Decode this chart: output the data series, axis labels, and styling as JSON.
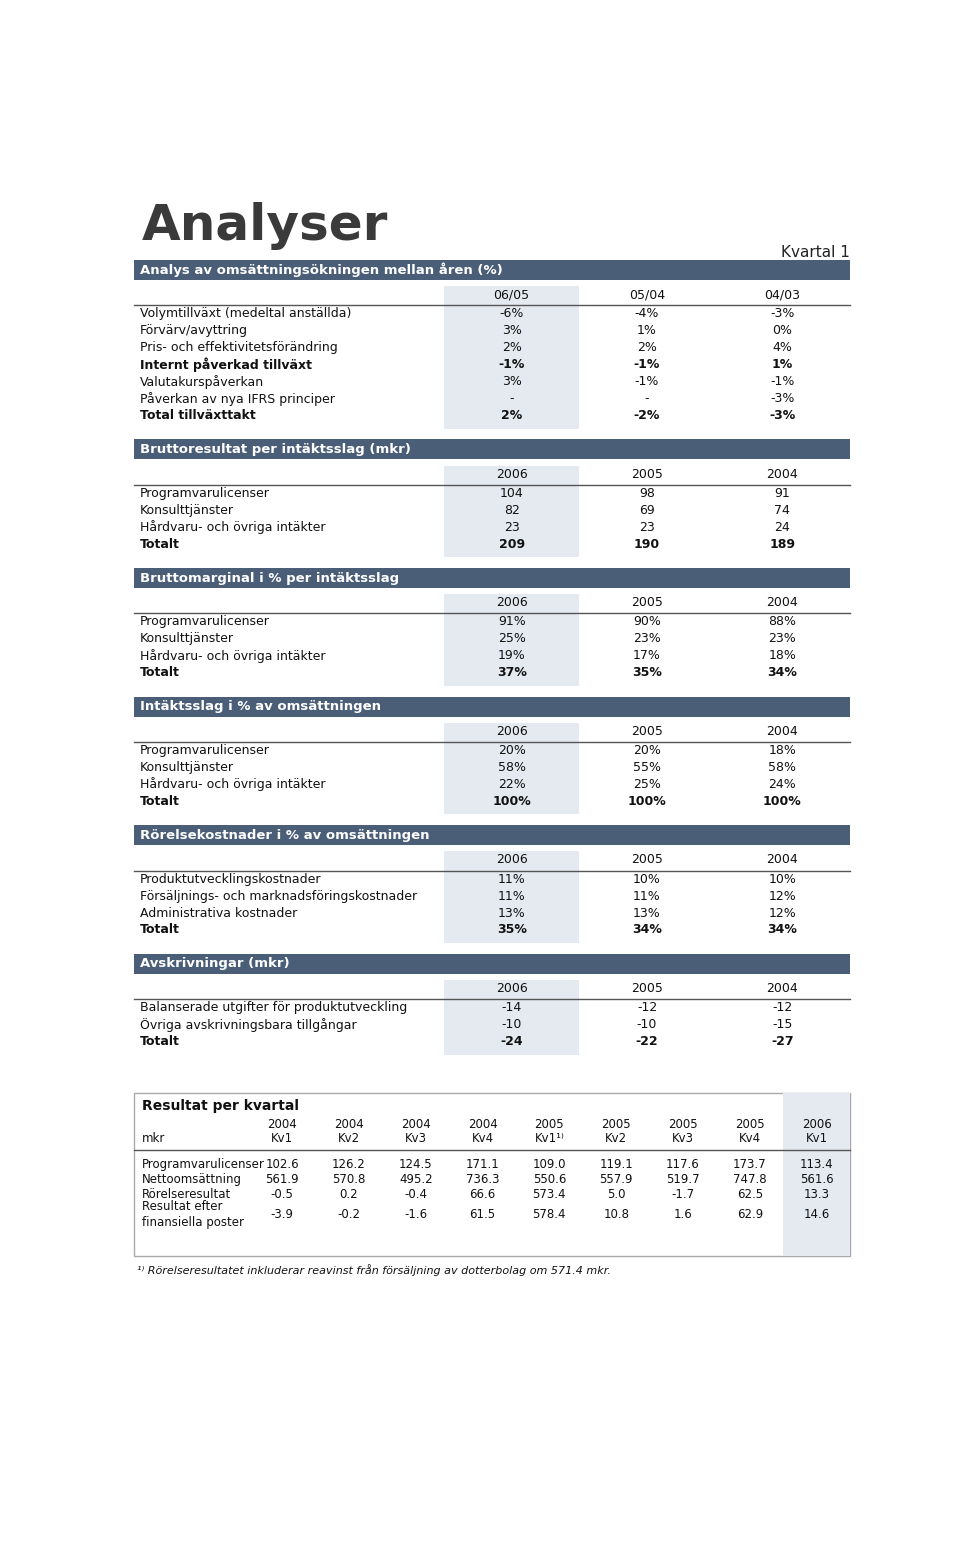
{
  "title": "Analyser",
  "kvartal": "Kvartal 1",
  "bg_color": "#ffffff",
  "header_color": "#4a5e78",
  "header_text_color": "#ffffff",
  "col_shade_color": "#e5eaf0",
  "body_text_color": "#111111",
  "title_color": "#444444",
  "section1_title": "Analys av omsättningsökningen mellan åren (%)",
  "section1_cols": [
    "06/05",
    "05/04",
    "04/03"
  ],
  "section1_rows": [
    {
      "label": "Volymtillväxt (medeltal anställda)",
      "values": [
        "-6%",
        "-4%",
        "-3%"
      ],
      "bold": false
    },
    {
      "label": "Förvärv/avyttring",
      "values": [
        "3%",
        "1%",
        "0%"
      ],
      "bold": false
    },
    {
      "label": "Pris- och effektivitetsförändring",
      "values": [
        "2%",
        "2%",
        "4%"
      ],
      "bold": false
    },
    {
      "label": "Internt påverkad tillväxt",
      "values": [
        "-1%",
        "-1%",
        "1%"
      ],
      "bold": true
    },
    {
      "label": "Valutakurspåverkan",
      "values": [
        "3%",
        "-1%",
        "-1%"
      ],
      "bold": false
    },
    {
      "label": "Påverkan av nya IFRS principer",
      "values": [
        "-",
        "-",
        "-3%"
      ],
      "bold": false
    },
    {
      "label": "Total tillväxttakt",
      "values": [
        "2%",
        "-2%",
        "-3%"
      ],
      "bold": true
    }
  ],
  "section2_title": "Bruttoresultat per intäktsslag (mkr)",
  "section2_cols": [
    "2006",
    "2005",
    "2004"
  ],
  "section2_rows": [
    {
      "label": "Programvarulicenser",
      "values": [
        "104",
        "98",
        "91"
      ],
      "bold": false
    },
    {
      "label": "Konsulttjänster",
      "values": [
        "82",
        "69",
        "74"
      ],
      "bold": false
    },
    {
      "label": "Hårdvaru- och övriga intäkter",
      "values": [
        "23",
        "23",
        "24"
      ],
      "bold": false
    },
    {
      "label": "Totalt",
      "values": [
        "209",
        "190",
        "189"
      ],
      "bold": true
    }
  ],
  "section3_title": "Bruttomarginal i % per intäktsslag",
  "section3_cols": [
    "2006",
    "2005",
    "2004"
  ],
  "section3_rows": [
    {
      "label": "Programvarulicenser",
      "values": [
        "91%",
        "90%",
        "88%"
      ],
      "bold": false
    },
    {
      "label": "Konsulttjänster",
      "values": [
        "25%",
        "23%",
        "23%"
      ],
      "bold": false
    },
    {
      "label": "Hårdvaru- och övriga intäkter",
      "values": [
        "19%",
        "17%",
        "18%"
      ],
      "bold": false
    },
    {
      "label": "Totalt",
      "values": [
        "37%",
        "35%",
        "34%"
      ],
      "bold": true
    }
  ],
  "section4_title": "Intäktsslag i % av omsättningen",
  "section4_cols": [
    "2006",
    "2005",
    "2004"
  ],
  "section4_rows": [
    {
      "label": "Programvarulicenser",
      "values": [
        "20%",
        "20%",
        "18%"
      ],
      "bold": false
    },
    {
      "label": "Konsulttjänster",
      "values": [
        "58%",
        "55%",
        "58%"
      ],
      "bold": false
    },
    {
      "label": "Hårdvaru- och övriga intäkter",
      "values": [
        "22%",
        "25%",
        "24%"
      ],
      "bold": false
    },
    {
      "label": "Totalt",
      "values": [
        "100%",
        "100%",
        "100%"
      ],
      "bold": true
    }
  ],
  "section5_title": "Rörelsekostnader i % av omsättningen",
  "section5_cols": [
    "2006",
    "2005",
    "2004"
  ],
  "section5_rows": [
    {
      "label": "Produktutvecklingskostnader",
      "values": [
        "11%",
        "10%",
        "10%"
      ],
      "bold": false
    },
    {
      "label": "Försäljnings- och marknadsföringskostnader",
      "values": [
        "11%",
        "11%",
        "12%"
      ],
      "bold": false
    },
    {
      "label": "Administrativa kostnader",
      "values": [
        "13%",
        "13%",
        "12%"
      ],
      "bold": false
    },
    {
      "label": "Totalt",
      "values": [
        "35%",
        "34%",
        "34%"
      ],
      "bold": true
    }
  ],
  "section6_title": "Avskrivningar (mkr)",
  "section6_cols": [
    "2006",
    "2005",
    "2004"
  ],
  "section6_rows": [
    {
      "label": "Balanserade utgifter för produktutveckling",
      "values": [
        "-14",
        "-12",
        "-12"
      ],
      "bold": false
    },
    {
      "label": "Övriga avskrivningsbara tillgångar",
      "values": [
        "-10",
        "-10",
        "-15"
      ],
      "bold": false
    },
    {
      "label": "Totalt",
      "values": [
        "-24",
        "-22",
        "-27"
      ],
      "bold": true
    }
  ],
  "section7_title": "Resultat per kvartal",
  "section7_cols_line1": [
    "2004",
    "2004",
    "2004",
    "2004",
    "2005",
    "2005",
    "2005",
    "2005",
    "2006"
  ],
  "section7_cols_line2": [
    "Kv1",
    "Kv2",
    "Kv3",
    "Kv4",
    "Kv1¹⁾",
    "Kv2",
    "Kv3",
    "Kv4",
    "Kv1"
  ],
  "section7_rows": [
    {
      "label": "Programvarulicenser",
      "values": [
        "102.6",
        "126.2",
        "124.5",
        "171.1",
        "109.0",
        "119.1",
        "117.6",
        "173.7",
        "113.4"
      ],
      "bold": false
    },
    {
      "label": "Nettoomsättning",
      "values": [
        "561.9",
        "570.8",
        "495.2",
        "736.3",
        "550.6",
        "557.9",
        "519.7",
        "747.8",
        "561.6"
      ],
      "bold": false
    },
    {
      "label": "Rörelseresultat",
      "values": [
        "-0.5",
        "0.2",
        "-0.4",
        "66.6",
        "573.4",
        "5.0",
        "-1.7",
        "62.5",
        "13.3"
      ],
      "bold": false
    },
    {
      "label": "Resultat efter\nfinansiella poster",
      "values": [
        "-3.9",
        "-0.2",
        "-1.6",
        "61.5",
        "578.4",
        "10.8",
        "1.6",
        "62.9",
        "14.6"
      ],
      "bold": false
    }
  ],
  "footnote": "¹⁾ Rörelseresultatet inkluderar reavinst från försäljning av dotterbolag om 571.4 mkr."
}
